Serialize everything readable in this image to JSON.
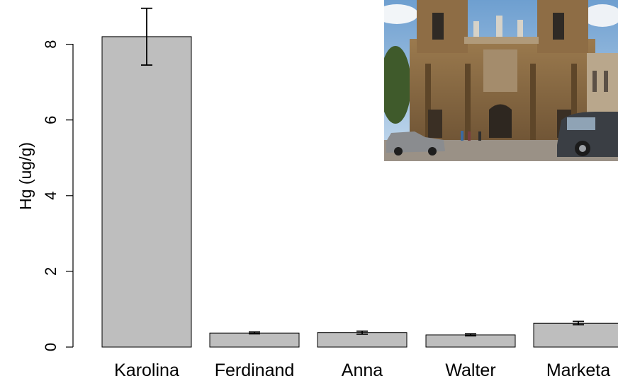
{
  "chart_data": {
    "type": "bar",
    "categories": [
      "Karolina",
      "Ferdinand",
      "Anna",
      "Walter",
      "Marketa"
    ],
    "values": [
      8.2,
      0.37,
      0.38,
      0.32,
      0.63
    ],
    "error_low": [
      7.45,
      0.35,
      0.34,
      0.3,
      0.59
    ],
    "error_high": [
      8.95,
      0.4,
      0.42,
      0.35,
      0.68
    ],
    "ylabel": "Hg (ug/g)",
    "xlabel": "",
    "ylim": [
      0,
      9
    ],
    "yticks": [
      0,
      2,
      4,
      6,
      8
    ],
    "bar_color": "#bebebe",
    "grid": false,
    "inset": {
      "description_icon": "church-photo",
      "sky": "#8fb6d9",
      "facade": "#8a6a42",
      "pavement": "#9a9186",
      "car": "#3a3e44"
    }
  }
}
